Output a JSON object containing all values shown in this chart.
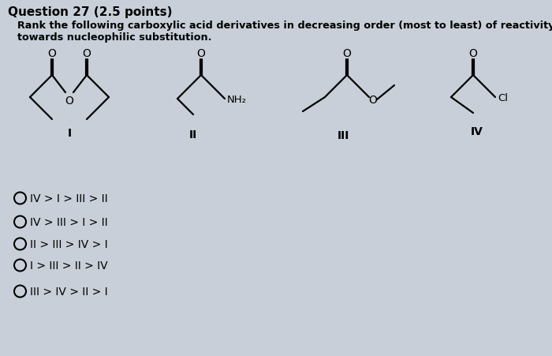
{
  "title": "Question 27 (2.5 points)",
  "line1": "Rank the following carboxylic acid derivatives in decreasing order (most to least) of reactivity",
  "line2": "towards nucleophilic substitution.",
  "background_color": "#c8cfd8",
  "options": [
    "IV > I > III > II",
    "IV > III > I > II",
    "II > III > IV > I",
    "I > III > II > IV",
    "III > IV > II > I"
  ],
  "fig_width": 7.0,
  "fig_height": 4.52,
  "dpi": 100
}
